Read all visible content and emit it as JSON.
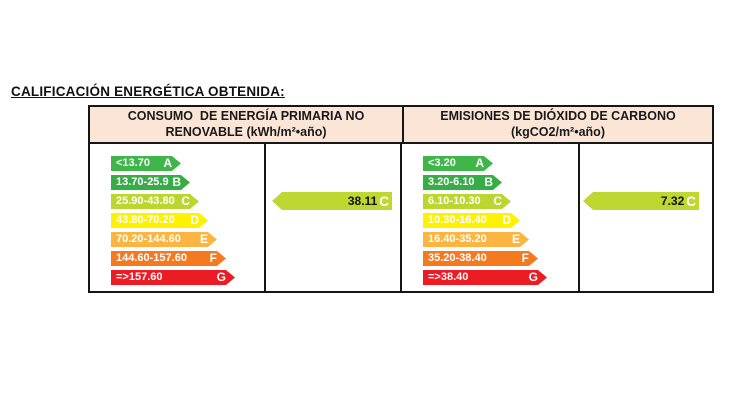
{
  "title": "CALIFICACIÓN ENERGÉTICA OBTENIDA:",
  "colors": {
    "header_bg": "#FBE5D6",
    "border": "#161616",
    "result_arrow": "#BFD730"
  },
  "sections": [
    {
      "header": {
        "line1": "CONSUMO  DE ENERGÍA PRIMARIA NO",
        "line2": "RENOVABLE (kWh/m²•año)"
      },
      "scale": [
        {
          "grade": "A",
          "range": "<13.70",
          "color": "#3FB54A"
        },
        {
          "grade": "B",
          "range": "13.70-25.9",
          "color": "#38AD47"
        },
        {
          "grade": "C",
          "range": "25.90-43.80",
          "color": "#BDD62F"
        },
        {
          "grade": "D",
          "range": "43.80-70.20",
          "color": "#FFF200"
        },
        {
          "grade": "E",
          "range": "70.20-144.60",
          "color": "#FCB541"
        },
        {
          "grade": "F",
          "range": "144.60-157.60",
          "color": "#F5791F"
        },
        {
          "grade": "G",
          "range": "=>157.60",
          "color": "#EB1C24"
        }
      ],
      "result": {
        "value": "38.11",
        "grade": "C",
        "color": "#BFD730"
      }
    },
    {
      "header": {
        "line1": "EMISIONES DE DIÓXIDO DE CARBONO",
        "line2": "(kgCO2/m²•año)"
      },
      "scale": [
        {
          "grade": "A",
          "range": "<3.20",
          "color": "#3FB54A"
        },
        {
          "grade": "B",
          "range": "3.20-6.10",
          "color": "#38AD47"
        },
        {
          "grade": "C",
          "range": "6.10-10.30",
          "color": "#BDD62F"
        },
        {
          "grade": "D",
          "range": "10.30-16.40",
          "color": "#FFF200"
        },
        {
          "grade": "E",
          "range": "16.40-35.20",
          "color": "#FCB541"
        },
        {
          "grade": "F",
          "range": "35.20-38.40",
          "color": "#F5791F"
        },
        {
          "grade": "G",
          "range": "=>38.40",
          "color": "#EB1C24"
        }
      ],
      "result": {
        "value": "7.32",
        "grade": "C",
        "color": "#BFD730"
      }
    }
  ],
  "chart_data": [
    {
      "type": "table",
      "title": "CONSUMO DE ENERGÍA PRIMARIA NO RENOVABLE (kWh/m²•año)",
      "categories": [
        "A",
        "B",
        "C",
        "D",
        "E",
        "F",
        "G"
      ],
      "ranges": [
        "<13.70",
        "13.70-25.9",
        "25.90-43.80",
        "43.80-70.20",
        "70.20-144.60",
        "144.60-157.60",
        "=>157.60"
      ],
      "obtained_value": 38.11,
      "obtained_grade": "C",
      "legend_position": "right",
      "layout": "horizontal-arrow-scale"
    },
    {
      "type": "table",
      "title": "EMISIONES DE DIÓXIDO DE CARBONO (kgCO2/m²•año)",
      "categories": [
        "A",
        "B",
        "C",
        "D",
        "E",
        "F",
        "G"
      ],
      "ranges": [
        "<3.20",
        "3.20-6.10",
        "6.10-10.30",
        "10.30-16.40",
        "16.40-35.20",
        "35.20-38.40",
        "=>38.40"
      ],
      "obtained_value": 7.32,
      "obtained_grade": "C",
      "legend_position": "right",
      "layout": "horizontal-arrow-scale"
    }
  ]
}
